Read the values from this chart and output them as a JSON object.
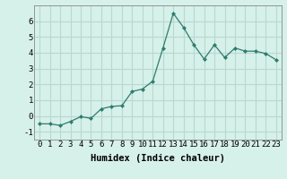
{
  "x": [
    0,
    1,
    2,
    3,
    4,
    5,
    6,
    7,
    8,
    9,
    10,
    11,
    12,
    13,
    14,
    15,
    16,
    17,
    18,
    19,
    20,
    21,
    22,
    23
  ],
  "y": [
    -0.5,
    -0.5,
    -0.6,
    -0.35,
    -0.05,
    -0.15,
    0.45,
    0.6,
    0.65,
    1.55,
    1.7,
    2.2,
    4.3,
    6.5,
    5.6,
    4.5,
    3.6,
    4.5,
    3.7,
    4.3,
    4.1,
    4.1,
    3.95,
    3.55
  ],
  "line_color": "#2e7d6e",
  "marker": "D",
  "marker_size": 2.0,
  "bg_color": "#d6f0ea",
  "grid_color": "#b8d8d0",
  "xlabel": "Humidex (Indice chaleur)",
  "xlim": [
    -0.5,
    23.5
  ],
  "ylim": [
    -1.5,
    7.0
  ],
  "yticks": [
    -1,
    0,
    1,
    2,
    3,
    4,
    5,
    6
  ],
  "xticks": [
    0,
    1,
    2,
    3,
    4,
    5,
    6,
    7,
    8,
    9,
    10,
    11,
    12,
    13,
    14,
    15,
    16,
    17,
    18,
    19,
    20,
    21,
    22,
    23
  ],
  "xlabel_fontsize": 7.5,
  "tick_fontsize": 6.5
}
